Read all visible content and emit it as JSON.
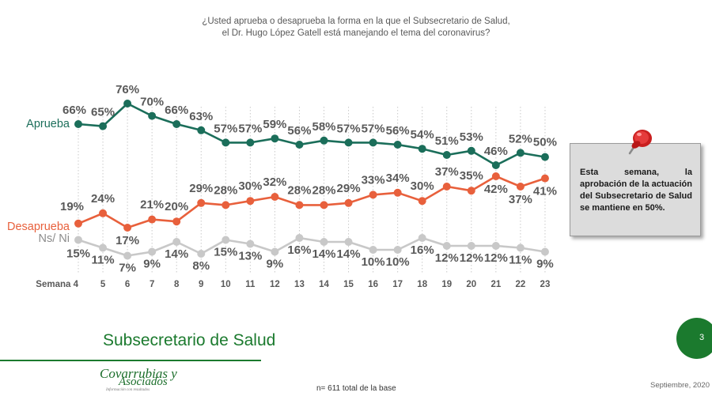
{
  "question": {
    "line1": "¿Usted aprueba o desaprueba la forma en la que el Subsecretario de Salud,",
    "line2": "el Dr. Hugo López Gatell está manejando el tema del coronavirus?"
  },
  "chart_data": {
    "type": "line",
    "title": "¿Usted aprueba o desaprueba la forma en la que el Subsecretario de Salud, el Dr. Hugo López Gatell está manejando el tema del coronavirus?",
    "xlabel": "",
    "ylabel": "",
    "x_axis_prefix": "Semana",
    "categories": [
      "4",
      "5",
      "6",
      "7",
      "8",
      "9",
      "10",
      "11",
      "12",
      "13",
      "14",
      "15",
      "16",
      "17",
      "18",
      "19",
      "20",
      "21",
      "22",
      "23"
    ],
    "ylim": [
      0,
      100
    ],
    "grid": "vertical-dotted",
    "series": [
      {
        "name": "Aprueba",
        "color": "#1b6e5a",
        "values": [
          66,
          65,
          76,
          70,
          66,
          63,
          57,
          57,
          59,
          56,
          58,
          57,
          57,
          56,
          54,
          51,
          53,
          46,
          52,
          50
        ],
        "labels": [
          "66%",
          "65%",
          "76%",
          "70%",
          "66%",
          "63%",
          "57%",
          "57%",
          "59%",
          "56%",
          "58%",
          "57%",
          "57%",
          "56%",
          "54%",
          "51%",
          "53%",
          "46%",
          "52%",
          "50%"
        ]
      },
      {
        "name": "Desaprueba",
        "color": "#e8603c",
        "values": [
          19,
          24,
          17,
          21,
          20,
          29,
          28,
          30,
          32,
          28,
          28,
          29,
          33,
          34,
          30,
          37,
          35,
          42,
          37,
          41
        ],
        "labels": [
          "19%",
          "24%",
          "17%",
          "21%",
          "20%",
          "29%",
          "28%",
          "30%",
          "32%",
          "28%",
          "28%",
          "29%",
          "33%",
          "34%",
          "30%",
          "37%",
          "35%",
          "42%",
          "37%",
          "41%"
        ]
      },
      {
        "name": "Ns/ Ni",
        "color": "#c8c8c8",
        "values": [
          15,
          11,
          7,
          9,
          14,
          8,
          15,
          13,
          9,
          16,
          14,
          14,
          10,
          10,
          16,
          12,
          12,
          12,
          11,
          9
        ],
        "labels": [
          "15%",
          "11%",
          "7%",
          "9%",
          "14%",
          "8%",
          "15%",
          "13%",
          "9%",
          "16%",
          "14%",
          "14%",
          "10%",
          "10%",
          "16%",
          "12%",
          "12%",
          "12%",
          "11%",
          "9%"
        ]
      }
    ]
  },
  "note": {
    "text": "Esta semana, la aprobación de la actuación del Subsecretario de Salud se mantiene en 50%.",
    "pin_icon": "push-pin-icon",
    "pin_color": "#d42a2a"
  },
  "footer": {
    "section_title": "Subsecretario de Salud",
    "page_number": "3",
    "sample_note": "n= 611 total de la base",
    "date": "Septiembre, 2020",
    "logo_line1": "Covarrubias y",
    "logo_line2": "Asociados",
    "logo_tagline": "Información con resultados",
    "brand_color": "#1b7a2e"
  }
}
